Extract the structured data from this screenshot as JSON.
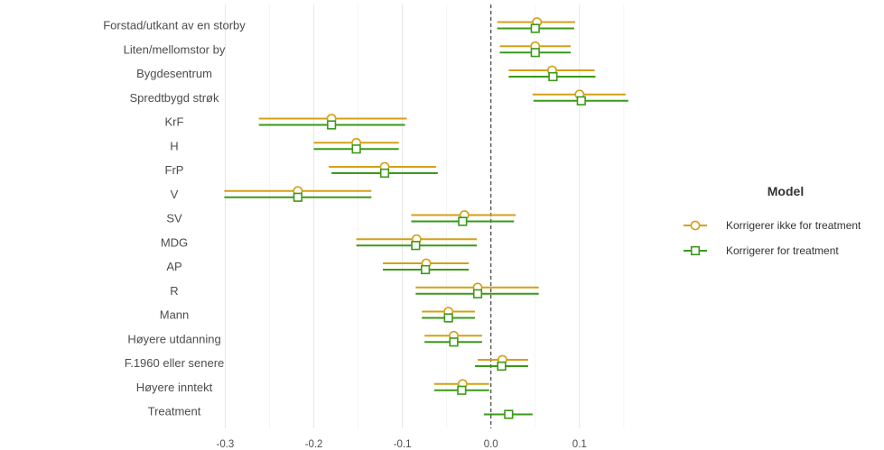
{
  "chart_data": {
    "type": "scatter",
    "title": "",
    "xlabel": "",
    "ylabel": "",
    "xlim": [
      -0.33,
      0.195
    ],
    "grid": true,
    "reference_line": 0.0,
    "x_ticks": [
      -0.3,
      -0.2,
      -0.1,
      0.0,
      0.1
    ],
    "x_tick_labels": [
      "-0.3",
      "-0.2",
      "-0.1",
      "0.0",
      "0.1"
    ],
    "categories": [
      "Forstad/utkant av en storby",
      "Liten/mellomstor by",
      "Bygdesentrum",
      "Spredtbygd strøk",
      "KrF",
      "H",
      "FrP",
      "V",
      "SV",
      "MDG",
      "AP",
      "R",
      "Mann",
      "Høyere utdanning",
      "F.1960 eller senere",
      "Høyere inntekt",
      "Treatment"
    ],
    "legend": {
      "title": "Model",
      "position": "right"
    },
    "series": [
      {
        "name": "Korrigerer ikke for treatment",
        "color": "#d4a017",
        "marker": "circle",
        "values": [
          {
            "category": "Forstad/utkant av en storby",
            "estimate": 0.052,
            "low": 0.007,
            "high": 0.095
          },
          {
            "category": "Liten/mellomstor by",
            "estimate": 0.05,
            "low": 0.01,
            "high": 0.09
          },
          {
            "category": "Bygdesentrum",
            "estimate": 0.069,
            "low": 0.02,
            "high": 0.117
          },
          {
            "category": "Spredtbygd strøk",
            "estimate": 0.1,
            "low": 0.047,
            "high": 0.152
          },
          {
            "category": "KrF",
            "estimate": -0.18,
            "low": -0.262,
            "high": -0.095
          },
          {
            "category": "H",
            "estimate": -0.152,
            "low": -0.2,
            "high": -0.104
          },
          {
            "category": "FrP",
            "estimate": -0.12,
            "low": -0.183,
            "high": -0.062
          },
          {
            "category": "V",
            "estimate": -0.218,
            "low": -0.301,
            "high": -0.135
          },
          {
            "category": "SV",
            "estimate": -0.03,
            "low": -0.09,
            "high": 0.028
          },
          {
            "category": "MDG",
            "estimate": -0.084,
            "low": -0.152,
            "high": -0.016
          },
          {
            "category": "AP",
            "estimate": -0.073,
            "low": -0.122,
            "high": -0.025
          },
          {
            "category": "R",
            "estimate": -0.015,
            "low": -0.085,
            "high": 0.054
          },
          {
            "category": "Mann",
            "estimate": -0.048,
            "low": -0.078,
            "high": -0.018
          },
          {
            "category": "Høyere utdanning",
            "estimate": -0.042,
            "low": -0.075,
            "high": -0.01
          },
          {
            "category": "F.1960 eller senere",
            "estimate": 0.013,
            "low": -0.015,
            "high": 0.042
          },
          {
            "category": "Høyere inntekt",
            "estimate": -0.032,
            "low": -0.064,
            "high": -0.002
          }
        ]
      },
      {
        "name": "Korrigerer for treatment",
        "color": "#3a9a19",
        "marker": "square",
        "values": [
          {
            "category": "Forstad/utkant av en storby",
            "estimate": 0.05,
            "low": 0.007,
            "high": 0.094
          },
          {
            "category": "Liten/mellomstor by",
            "estimate": 0.05,
            "low": 0.01,
            "high": 0.09
          },
          {
            "category": "Bygdesentrum",
            "estimate": 0.07,
            "low": 0.02,
            "high": 0.118
          },
          {
            "category": "Spredtbygd strøk",
            "estimate": 0.102,
            "low": 0.048,
            "high": 0.155
          },
          {
            "category": "KrF",
            "estimate": -0.18,
            "low": -0.262,
            "high": -0.097
          },
          {
            "category": "H",
            "estimate": -0.152,
            "low": -0.2,
            "high": -0.104
          },
          {
            "category": "FrP",
            "estimate": -0.12,
            "low": -0.18,
            "high": -0.06
          },
          {
            "category": "V",
            "estimate": -0.218,
            "low": -0.301,
            "high": -0.135
          },
          {
            "category": "SV",
            "estimate": -0.032,
            "low": -0.09,
            "high": 0.026
          },
          {
            "category": "MDG",
            "estimate": -0.085,
            "low": -0.152,
            "high": -0.016
          },
          {
            "category": "AP",
            "estimate": -0.074,
            "low": -0.122,
            "high": -0.025
          },
          {
            "category": "R",
            "estimate": -0.015,
            "low": -0.085,
            "high": 0.054
          },
          {
            "category": "Mann",
            "estimate": -0.048,
            "low": -0.078,
            "high": -0.018
          },
          {
            "category": "Høyere utdanning",
            "estimate": -0.042,
            "low": -0.075,
            "high": -0.01
          },
          {
            "category": "F.1960 eller senere",
            "estimate": 0.012,
            "low": -0.018,
            "high": 0.042
          },
          {
            "category": "Høyere inntekt",
            "estimate": -0.033,
            "low": -0.064,
            "high": -0.002
          },
          {
            "category": "Treatment",
            "estimate": 0.02,
            "low": -0.008,
            "high": 0.047
          }
        ]
      }
    ]
  }
}
